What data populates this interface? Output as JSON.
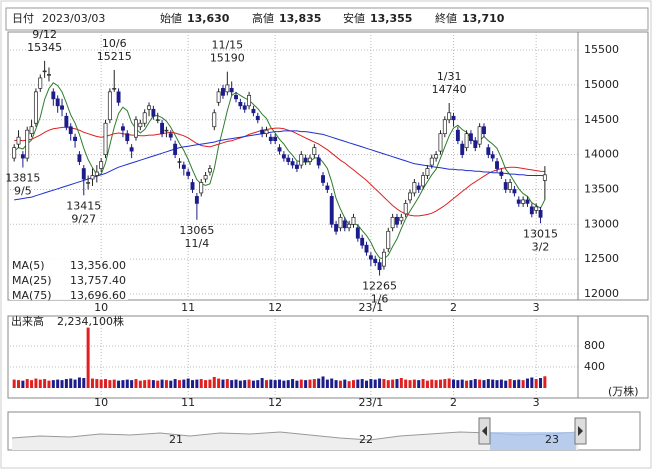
{
  "header": {
    "date_name": "日付",
    "date": "2023/03/03",
    "items": [
      {
        "name": "始値",
        "value": "13,630",
        "color": "#111111"
      },
      {
        "name": "高値",
        "value": "13,835",
        "color": "#d40000"
      },
      {
        "name": "安値",
        "value": "13,355",
        "color": "#007a00"
      },
      {
        "name": "終値",
        "value": "13,710",
        "color": "#111111"
      }
    ]
  },
  "chart_data": {
    "type": "candlestick",
    "categories": [
      null,
      null,
      null,
      null,
      null,
      null,
      null,
      null,
      null,
      null,
      null,
      null,
      null,
      null,
      null,
      null,
      null,
      null,
      null,
      null,
      "10",
      null,
      null,
      null,
      null,
      null,
      null,
      null,
      null,
      null,
      null,
      null,
      null,
      null,
      null,
      null,
      null,
      null,
      null,
      null,
      "11",
      null,
      null,
      null,
      null,
      null,
      null,
      null,
      null,
      null,
      null,
      null,
      null,
      null,
      null,
      null,
      null,
      null,
      null,
      null,
      "12",
      null,
      null,
      null,
      null,
      null,
      null,
      null,
      null,
      null,
      null,
      null,
      null,
      null,
      null,
      null,
      null,
      null,
      null,
      null,
      null,
      null,
      "23/1",
      null,
      null,
      null,
      null,
      null,
      null,
      null,
      null,
      null,
      null,
      null,
      null,
      null,
      null,
      null,
      null,
      null,
      null,
      "2",
      null,
      null,
      null,
      null,
      null,
      null,
      null,
      null,
      null,
      null,
      null,
      null,
      null,
      null,
      null,
      null,
      null,
      null,
      "3",
      null,
      null
    ],
    "open": [
      13950,
      14150,
      14000,
      13950,
      14300,
      14450,
      14950,
      15200,
      15150,
      14900,
      14800,
      14700,
      14550,
      14400,
      14250,
      14000,
      13800,
      13600,
      13650,
      13700,
      13800,
      14000,
      14500,
      14950,
      14900,
      14400,
      14300,
      14100,
      14250,
      14400,
      14450,
      14650,
      14650,
      14500,
      14450,
      14350,
      14300,
      14150,
      13900,
      13850,
      13750,
      13600,
      13400,
      13450,
      13650,
      13750,
      14400,
      14750,
      14950,
      14900,
      14950,
      14850,
      14750,
      14700,
      14700,
      14650,
      14550,
      14350,
      14300,
      14250,
      14250,
      14100,
      14000,
      13950,
      13900,
      13850,
      13850,
      13950,
      13900,
      14000,
      13950,
      13700,
      13550,
      13400,
      13000,
      12950,
      13050,
      12950,
      13000,
      12950,
      12800,
      12700,
      12550,
      12500,
      12450,
      12400,
      12650,
      12950,
      13100,
      13050,
      13150,
      13350,
      13450,
      13550,
      13550,
      13700,
      13850,
      13950,
      14050,
      14300,
      14500,
      14550,
      14350,
      14150,
      14100,
      14300,
      14200,
      14150,
      14400,
      14100,
      14000,
      13900,
      13750,
      13600,
      13500,
      13500,
      13350,
      13300,
      13350,
      13250,
      13200,
      13200,
      13630
    ],
    "high": [
      14150,
      14350,
      14050,
      14400,
      14500,
      14950,
      15150,
      15345,
      15250,
      14950,
      14850,
      14800,
      14600,
      14450,
      14300,
      14050,
      13850,
      13700,
      13800,
      13850,
      13950,
      14500,
      14950,
      15215,
      14950,
      14450,
      14350,
      14150,
      14550,
      14500,
      14650,
      14750,
      14700,
      14600,
      14500,
      14400,
      14350,
      14200,
      13950,
      13900,
      13800,
      13650,
      13450,
      13650,
      13750,
      13850,
      14650,
      14950,
      15000,
      15190,
      15050,
      14900,
      14800,
      14750,
      14900,
      14700,
      14600,
      14400,
      14400,
      14300,
      14300,
      14150,
      14050,
      14000,
      13950,
      13900,
      14050,
      14000,
      14000,
      14150,
      14000,
      13750,
      13600,
      13450,
      13050,
      13150,
      13100,
      13050,
      13150,
      13000,
      12850,
      12750,
      12600,
      12550,
      12500,
      12650,
      12950,
      13150,
      13150,
      13150,
      13350,
      13500,
      13650,
      13600,
      13750,
      13850,
      14000,
      14050,
      14350,
      14550,
      14740,
      14600,
      14400,
      14200,
      14350,
      14350,
      14250,
      14450,
      14450,
      14150,
      14050,
      13950,
      13800,
      13650,
      13650,
      13550,
      13400,
      13400,
      13400,
      13300,
      13300,
      13250,
      13835
    ],
    "low": [
      13900,
      14100,
      13815,
      13900,
      14250,
      14400,
      14900,
      15100,
      15050,
      14700,
      14600,
      14550,
      14350,
      14200,
      14100,
      13850,
      13415,
      13500,
      13550,
      13600,
      13750,
      13950,
      14450,
      14900,
      14700,
      14250,
      14150,
      13950,
      14200,
      14350,
      14400,
      14550,
      14500,
      14450,
      14250,
      14250,
      14200,
      13950,
      13800,
      13700,
      13650,
      13450,
      13065,
      13400,
      13600,
      13700,
      14350,
      14700,
      14800,
      14850,
      14850,
      14750,
      14650,
      14600,
      14650,
      14550,
      14450,
      14250,
      14250,
      14150,
      14150,
      14000,
      13900,
      13850,
      13800,
      13750,
      13800,
      13850,
      13850,
      13950,
      13800,
      13550,
      13450,
      12950,
      12850,
      12900,
      12900,
      12900,
      12950,
      12750,
      12650,
      12550,
      12400,
      12400,
      12265,
      12350,
      12600,
      12900,
      12950,
      13000,
      13100,
      13300,
      13400,
      13450,
      13500,
      13650,
      13800,
      13900,
      14000,
      14250,
      14450,
      14400,
      14150,
      13950,
      14050,
      14150,
      14050,
      14100,
      14250,
      13950,
      13900,
      13750,
      13650,
      13450,
      13450,
      13400,
      13250,
      13250,
      13250,
      13100,
      13150,
      13015,
      13355
    ],
    "close": [
      14100,
      14250,
      13950,
      14350,
      14400,
      14900,
      15100,
      15200,
      15150,
      14800,
      14700,
      14650,
      14400,
      14300,
      14200,
      13900,
      13650,
      13600,
      13700,
      13750,
      13900,
      14450,
      14900,
      14950,
      14750,
      14350,
      14200,
      14050,
      14500,
      14450,
      14600,
      14700,
      14550,
      14500,
      14300,
      14350,
      14250,
      14000,
      13900,
      13800,
      13700,
      13500,
      13300,
      13600,
      13700,
      13800,
      14600,
      14900,
      14850,
      15000,
      14900,
      14800,
      14700,
      14650,
      14850,
      14600,
      14500,
      14300,
      14350,
      14200,
      14200,
      14050,
      13950,
      13900,
      13850,
      13800,
      14000,
      13900,
      13950,
      14100,
      13850,
      13600,
      13500,
      13000,
      12900,
      13100,
      12950,
      13000,
      13100,
      12800,
      12700,
      12600,
      12500,
      12450,
      12350,
      12600,
      12900,
      13100,
      13000,
      13100,
      13300,
      13450,
      13600,
      13500,
      13700,
      13800,
      13950,
      14000,
      14300,
      14500,
      14600,
      14500,
      14200,
      14000,
      14300,
      14200,
      14100,
      14400,
      14300,
      14000,
      13950,
      13800,
      13700,
      13500,
      13600,
      13450,
      13300,
      13350,
      13300,
      13150,
      13250,
      13100,
      13710
    ],
    "up_color": "#ffffff",
    "down_color": "#1c1c8a",
    "ylim": [
      11914,
      15759
    ],
    "yticks": [
      12000,
      12500,
      13000,
      13500,
      14000,
      14500,
      15000,
      15500
    ],
    "grid": true,
    "series": [
      {
        "name": "MA(5)",
        "color": "#2e7d2e",
        "legend_value": "13,356.00",
        "values": [
          14050,
          14100,
          14080,
          14150,
          14210,
          14370,
          14540,
          14790,
          14950,
          15030,
          14990,
          14900,
          14740,
          14570,
          14450,
          14290,
          14090,
          13930,
          13810,
          13720,
          13720,
          13880,
          14140,
          14390,
          14590,
          14680,
          14630,
          14460,
          14370,
          14310,
          14360,
          14460,
          14560,
          14560,
          14530,
          14480,
          14390,
          14280,
          14160,
          14060,
          13930,
          13780,
          13640,
          13580,
          13560,
          13580,
          13800,
          14120,
          14370,
          14630,
          14850,
          14890,
          14850,
          14810,
          14780,
          14720,
          14660,
          14580,
          14520,
          14390,
          14310,
          14220,
          14150,
          14060,
          13990,
          13910,
          13900,
          13890,
          13900,
          13950,
          13960,
          13890,
          13800,
          13610,
          13370,
          13220,
          13090,
          12990,
          13010,
          12990,
          12910,
          12840,
          12740,
          12610,
          12520,
          12500,
          12560,
          12680,
          12790,
          12940,
          13080,
          13190,
          13290,
          13390,
          13510,
          13610,
          13710,
          13790,
          13950,
          14110,
          14270,
          14380,
          14420,
          14360,
          14320,
          14240,
          14160,
          14200,
          14260,
          14200,
          14150,
          14090,
          13950,
          13790,
          13710,
          13610,
          13510,
          13440,
          13400,
          13310,
          13270,
          13230,
          13356
        ]
      },
      {
        "name": "MA(25)",
        "color": "#e02020",
        "legend_value": "13,757.40",
        "values": [
          14200,
          14210,
          14200,
          14210,
          14220,
          14250,
          14280,
          14320,
          14350,
          14370,
          14380,
          14390,
          14390,
          14380,
          14370,
          14350,
          14320,
          14300,
          14280,
          14260,
          14250,
          14260,
          14280,
          14300,
          14310,
          14300,
          14290,
          14280,
          14280,
          14270,
          14270,
          14280,
          14280,
          14290,
          14300,
          14310,
          14320,
          14310,
          14290,
          14270,
          14240,
          14200,
          14160,
          14130,
          14120,
          14110,
          14130,
          14150,
          14170,
          14190,
          14200,
          14220,
          14240,
          14260,
          14290,
          14310,
          14330,
          14350,
          14360,
          14370,
          14380,
          14380,
          14370,
          14350,
          14330,
          14300,
          14270,
          14240,
          14210,
          14180,
          14150,
          14110,
          14070,
          14020,
          13970,
          13920,
          13880,
          13830,
          13780,
          13730,
          13680,
          13630,
          13570,
          13510,
          13450,
          13390,
          13330,
          13270,
          13220,
          13180,
          13150,
          13130,
          13120,
          13120,
          13130,
          13140,
          13160,
          13190,
          13230,
          13270,
          13320,
          13370,
          13420,
          13470,
          13520,
          13570,
          13610,
          13650,
          13690,
          13730,
          13760,
          13780,
          13800,
          13810,
          13820,
          13820,
          13810,
          13800,
          13790,
          13780,
          13770,
          13760,
          13757.4
        ]
      },
      {
        "name": "MA(75)",
        "color": "#2030d0",
        "legend_value": "13,696.60",
        "values": [
          13350,
          13360,
          13370,
          13380,
          13390,
          13410,
          13430,
          13450,
          13470,
          13490,
          13510,
          13530,
          13550,
          13570,
          13590,
          13610,
          13630,
          13650,
          13670,
          13690,
          13710,
          13730,
          13760,
          13790,
          13820,
          13840,
          13860,
          13880,
          13900,
          13920,
          13940,
          13960,
          13980,
          14000,
          14020,
          14040,
          14060,
          14080,
          14100,
          14110,
          14120,
          14130,
          14140,
          14150,
          14160,
          14170,
          14180,
          14200,
          14210,
          14220,
          14230,
          14240,
          14250,
          14260,
          14270,
          14280,
          14290,
          14300,
          14310,
          14320,
          14330,
          14330,
          14340,
          14340,
          14340,
          14340,
          14330,
          14330,
          14320,
          14310,
          14300,
          14290,
          14270,
          14250,
          14230,
          14210,
          14190,
          14170,
          14150,
          14130,
          14110,
          14090,
          14070,
          14050,
          14030,
          14010,
          13990,
          13970,
          13950,
          13930,
          13910,
          13890,
          13870,
          13860,
          13850,
          13840,
          13830,
          13820,
          13810,
          13800,
          13790,
          13790,
          13780,
          13780,
          13770,
          13770,
          13760,
          13760,
          13750,
          13750,
          13740,
          13740,
          13730,
          13730,
          13720,
          13720,
          13710,
          13710,
          13700,
          13700,
          13700,
          13700,
          13696.6
        ]
      }
    ],
    "annotations": [
      {
        "label": "9/5",
        "value": 13815
      },
      {
        "label": "9/12",
        "value": 15345
      },
      {
        "label": "9/27",
        "value": 13415
      },
      {
        "label": "10/6",
        "value": 15215
      },
      {
        "label": "11/4",
        "value": 13065
      },
      {
        "label": "11/15",
        "value": 15190
      },
      {
        "label": "1/6",
        "value": 12265
      },
      {
        "label": "1/31",
        "value": 14740
      },
      {
        "label": "3/2",
        "value": 13015
      }
    ],
    "volume": {
      "name": "出来高",
      "value_label": "2,234,100株",
      "unit": "(万株)",
      "ylim": [
        0,
        1333
      ],
      "yticks": [
        400,
        800
      ],
      "up_color": "#e02020",
      "down_color": "#1c1c8a",
      "values": [
        160,
        150,
        140,
        170,
        150,
        180,
        160,
        170,
        140,
        150,
        160,
        150,
        170,
        180,
        160,
        200,
        190,
        1150,
        180,
        170,
        160,
        170,
        150,
        160,
        140,
        150,
        160,
        150,
        170,
        140,
        150,
        160,
        150,
        140,
        160,
        150,
        140,
        170,
        150,
        160,
        180,
        150,
        160,
        170,
        150,
        160,
        210,
        180,
        160,
        170,
        150,
        160,
        140,
        150,
        160,
        140,
        150,
        190,
        150,
        160,
        150,
        160,
        140,
        150,
        170,
        140,
        160,
        150,
        160,
        170,
        180,
        220,
        160,
        180,
        150,
        140,
        160,
        130,
        150,
        160,
        170,
        140,
        170,
        160,
        180,
        170,
        150,
        160,
        170,
        190,
        160,
        150,
        160,
        150,
        170,
        140,
        160,
        150,
        160,
        170,
        180,
        160,
        150,
        160,
        140,
        150,
        170,
        160,
        150,
        170,
        160,
        150,
        160,
        140,
        170,
        150,
        160,
        150,
        180,
        200,
        170,
        190,
        223.41
      ]
    },
    "navigator": {
      "labels": [
        "21",
        "22",
        "23"
      ]
    }
  }
}
